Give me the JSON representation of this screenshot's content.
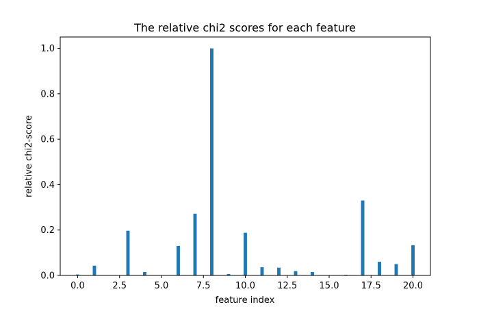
{
  "chart_data": {
    "type": "bar",
    "title": "The relative chi2 scores for each feature",
    "xlabel": "feature index",
    "ylabel": "relative chi2-score",
    "x": [
      0,
      1,
      2,
      3,
      4,
      5,
      6,
      7,
      8,
      9,
      10,
      11,
      12,
      13,
      14,
      15,
      16,
      17,
      18,
      19,
      20
    ],
    "values": [
      0.004,
      0.043,
      0.0,
      0.197,
      0.015,
      0.0,
      0.13,
      0.272,
      1.0,
      0.006,
      0.188,
      0.036,
      0.034,
      0.019,
      0.015,
      0.0,
      0.003,
      0.33,
      0.06,
      0.05,
      0.133
    ],
    "xlim": [
      -1.04,
      21.04
    ],
    "ylim": [
      0.0,
      1.05
    ],
    "xticks": [
      0.0,
      2.5,
      5.0,
      7.5,
      10.0,
      12.5,
      15.0,
      17.5,
      20.0
    ],
    "xtick_labels": [
      "0.0",
      "2.5",
      "5.0",
      "7.5",
      "10.0",
      "12.5",
      "15.0",
      "17.5",
      "20.0"
    ],
    "yticks": [
      0.0,
      0.2,
      0.4,
      0.6,
      0.8,
      1.0
    ],
    "ytick_labels": [
      "0.0",
      "0.2",
      "0.4",
      "0.6",
      "0.8",
      "1.0"
    ],
    "bar_color": "#1f77b4",
    "grid": false,
    "legend": "none"
  }
}
